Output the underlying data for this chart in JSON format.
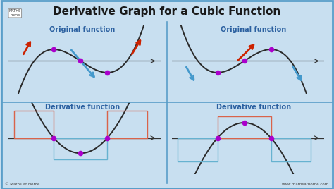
{
  "title": "Derivative Graph for a Cubic Function",
  "title_fontsize": 11,
  "title_color": "#1a1a1a",
  "bg_color": "#c8dff0",
  "panel_bg": "#eaf4fb",
  "border_color": "#5a9ec9",
  "label_color": "#2b60a0",
  "curve_color": "#2a2a2a",
  "dot_color": "#aa00cc",
  "arrow_red": "#cc2200",
  "arrow_blue": "#4499cc",
  "rect_red": "#d9634a",
  "rect_blue": "#66b2d0",
  "website_text": "www.mathsathome.com",
  "copyright_text": "© Maths at Home",
  "logo_text": "MATHS\nhome"
}
